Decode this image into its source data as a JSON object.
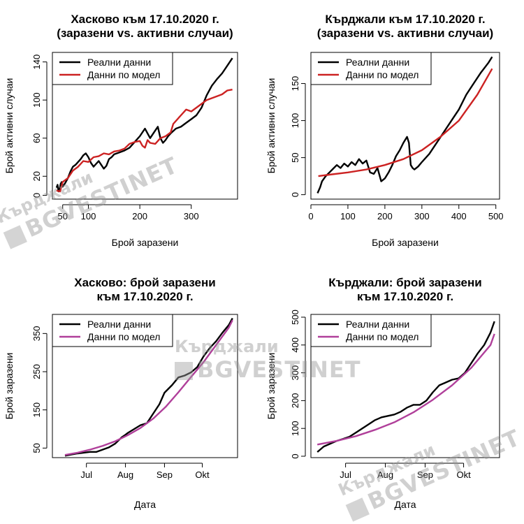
{
  "chart_data": [
    {
      "id": "p1",
      "type": "line",
      "title_lines": [
        "Хасково към 17.10.2020 г.",
        "(заразени vs. активни случаи)"
      ],
      "xlabel": "Брой заразени",
      "ylabel": "Брой активни случаи",
      "xlim": [
        30,
        390
      ],
      "ylim": [
        -4,
        150
      ],
      "xticks": [
        50,
        100,
        200,
        300
      ],
      "yticks": [
        0,
        20,
        60,
        100,
        140
      ],
      "legend": {
        "position": "top-left",
        "entries": [
          "Реални данни",
          "Данни по модел"
        ]
      },
      "series": [
        {
          "name": "Реални данни",
          "color": "#000000",
          "x": [
            38,
            40,
            42,
            44,
            46,
            48,
            50,
            55,
            60,
            65,
            70,
            75,
            80,
            85,
            90,
            95,
            100,
            105,
            110,
            115,
            120,
            125,
            130,
            135,
            140,
            145,
            150,
            160,
            170,
            180,
            190,
            200,
            205,
            210,
            215,
            220,
            225,
            230,
            235,
            240,
            245,
            250,
            255,
            260,
            270,
            280,
            290,
            300,
            310,
            320,
            330,
            340,
            350,
            360,
            370,
            380
          ],
          "y": [
            8,
            11,
            4,
            6,
            12,
            14,
            9,
            13,
            18,
            25,
            30,
            32,
            35,
            38,
            42,
            44,
            40,
            34,
            30,
            33,
            36,
            32,
            28,
            31,
            38,
            40,
            43,
            45,
            47,
            50,
            56,
            62,
            66,
            70,
            65,
            60,
            64,
            68,
            72,
            60,
            55,
            58,
            62,
            65,
            70,
            72,
            76,
            80,
            84,
            92,
            105,
            115,
            122,
            128,
            136,
            144
          ]
        },
        {
          "name": "Данни по модел",
          "color": "#cc2222",
          "x": [
            38,
            45,
            50,
            55,
            60,
            70,
            80,
            90,
            100,
            110,
            120,
            130,
            140,
            150,
            160,
            170,
            180,
            190,
            200,
            205,
            210,
            215,
            220,
            230,
            240,
            250,
            260,
            265,
            270,
            280,
            290,
            300,
            310,
            320,
            330,
            340,
            350,
            360,
            370,
            380
          ],
          "y": [
            5,
            4,
            14,
            16,
            18,
            26,
            30,
            36,
            35,
            40,
            41,
            44,
            43,
            46,
            47,
            49,
            54,
            56,
            57,
            52,
            50,
            58,
            55,
            54,
            60,
            62,
            66,
            75,
            78,
            84,
            90,
            88,
            92,
            96,
            100,
            102,
            104,
            106,
            110,
            111
          ]
        }
      ]
    },
    {
      "id": "p2",
      "type": "line",
      "title_lines": [
        "Кърджали към 17.10.2020 г.",
        "(заразени vs. активни случаи)"
      ],
      "xlabel": "Брой заразени",
      "ylabel": "Брой активни случаи",
      "xlim": [
        0,
        510
      ],
      "ylim": [
        -6,
        192
      ],
      "xticks": [
        0,
        100,
        200,
        300,
        400,
        500
      ],
      "yticks": [
        0,
        50,
        100,
        150
      ],
      "legend": {
        "position": "top-left",
        "entries": [
          "Реални данни",
          "Данни по модел"
        ]
      },
      "series": [
        {
          "name": "Реални данни",
          "color": "#000000",
          "x": [
            18,
            25,
            30,
            40,
            50,
            60,
            70,
            80,
            90,
            100,
            110,
            120,
            130,
            140,
            150,
            160,
            170,
            180,
            190,
            200,
            210,
            220,
            230,
            240,
            250,
            260,
            265,
            270,
            275,
            280,
            290,
            300,
            320,
            340,
            360,
            380,
            400,
            420,
            440,
            460,
            480,
            490
          ],
          "y": [
            2,
            10,
            18,
            25,
            30,
            35,
            40,
            36,
            42,
            38,
            44,
            40,
            48,
            42,
            46,
            30,
            28,
            36,
            18,
            22,
            30,
            40,
            52,
            60,
            70,
            78,
            70,
            40,
            36,
            34,
            38,
            44,
            55,
            70,
            85,
            100,
            115,
            135,
            150,
            165,
            178,
            186
          ]
        },
        {
          "name": "Данни по модел",
          "color": "#cc2222",
          "x": [
            20,
            50,
            100,
            150,
            200,
            250,
            300,
            350,
            400,
            450,
            490
          ],
          "y": [
            25,
            27,
            30,
            34,
            40,
            48,
            60,
            78,
            100,
            135,
            170
          ]
        }
      ]
    },
    {
      "id": "p3",
      "type": "line",
      "title_lines": [
        "Хасково: брой заразени",
        "към 17.10.2020 г."
      ],
      "xlabel": "Дата",
      "ylabel": "Брой заразени",
      "xlim": [
        0,
        147
      ],
      "ylim": [
        25,
        400
      ],
      "xticks": [
        27,
        58,
        89,
        119
      ],
      "xtick_labels": [
        "Jul",
        "Aug",
        "Sep",
        "Okt"
      ],
      "yticks": [
        50,
        150,
        250,
        350
      ],
      "legend": {
        "position": "top-left",
        "entries": [
          "Реални данни",
          "Данни по модел"
        ]
      },
      "series": [
        {
          "name": "Реални данни",
          "color": "#000000",
          "x": [
            10,
            15,
            20,
            25,
            30,
            35,
            40,
            45,
            50,
            55,
            58,
            60,
            65,
            70,
            75,
            80,
            85,
            89,
            95,
            100,
            105,
            110,
            115,
            120,
            125,
            130,
            135,
            140,
            143
          ],
          "y": [
            30,
            33,
            36,
            38,
            40,
            40,
            46,
            52,
            62,
            78,
            85,
            90,
            100,
            110,
            115,
            140,
            165,
            195,
            215,
            235,
            240,
            248,
            262,
            290,
            312,
            330,
            352,
            372,
            390
          ]
        },
        {
          "name": "Данни по модел",
          "color": "#b03f9a",
          "x": [
            10,
            20,
            30,
            40,
            50,
            60,
            70,
            80,
            90,
            100,
            110,
            120,
            130,
            140,
            143
          ],
          "y": [
            32,
            38,
            46,
            56,
            68,
            84,
            103,
            127,
            158,
            196,
            236,
            275,
            320,
            365,
            385
          ]
        }
      ]
    },
    {
      "id": "p4",
      "type": "line",
      "title_lines": [
        "Кърджали: брой заразени",
        "към 17.10.2020 г."
      ],
      "xlabel": "Дата",
      "ylabel": "Брой заразени",
      "xlim": [
        0,
        147
      ],
      "ylim": [
        -5,
        510
      ],
      "xticks": [
        27,
        58,
        89,
        119
      ],
      "xtick_labels": [
        "Jul",
        "Aug",
        "Sep",
        "Okt"
      ],
      "yticks": [
        0,
        100,
        200,
        300,
        400,
        500
      ],
      "legend": {
        "position": "top-left",
        "entries": [
          "Реални данни",
          "Данни по модел"
        ]
      },
      "series": [
        {
          "name": "Реални данни",
          "color": "#000000",
          "x": [
            5,
            10,
            15,
            20,
            25,
            30,
            35,
            40,
            45,
            50,
            55,
            60,
            65,
            70,
            75,
            80,
            85,
            90,
            95,
            100,
            105,
            110,
            115,
            120,
            125,
            130,
            135,
            140,
            143
          ],
          "y": [
            15,
            35,
            45,
            55,
            62,
            70,
            85,
            100,
            115,
            130,
            140,
            145,
            150,
            160,
            175,
            185,
            185,
            200,
            230,
            255,
            265,
            275,
            280,
            300,
            335,
            370,
            400,
            445,
            485
          ]
        },
        {
          "name": "Данни по модел",
          "color": "#b03f9a",
          "x": [
            5,
            20,
            35,
            50,
            65,
            80,
            95,
            110,
            125,
            140,
            143
          ],
          "y": [
            42,
            55,
            72,
            95,
            122,
            158,
            203,
            255,
            318,
            400,
            440
          ]
        }
      ]
    }
  ],
  "watermarks": [
    {
      "line1": "Кърджали",
      "line2": "BGVESTINET"
    },
    {
      "line1": "Кърджали",
      "line2": "BGVESTINET"
    },
    {
      "line1": "Кърджали",
      "line2": "BGVESTINET"
    }
  ]
}
